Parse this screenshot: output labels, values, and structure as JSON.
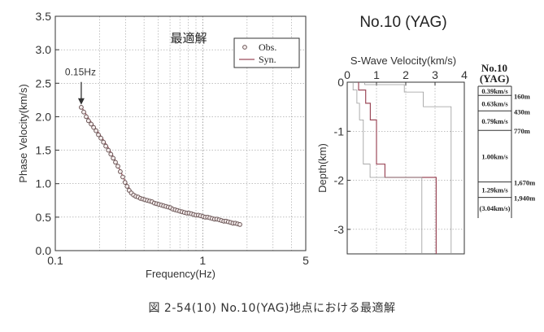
{
  "station_title": "No.10 (YAG)",
  "caption": "図 2-54(10)  No.10(YAG)地点における最適解",
  "chart_data": [
    {
      "type": "scatter",
      "title": "最適解",
      "xlabel": "Frequency(Hz)",
      "ylabel": "Phase Velocity(km/s)",
      "xscale": "log",
      "xlim": [
        0.1,
        5
      ],
      "ylim": [
        0,
        3.5
      ],
      "x_tick_labels": [
        "0.1",
        "1",
        "5"
      ],
      "y_tick_labels": [
        "0.0",
        "0.5",
        "1.0",
        "1.5",
        "2.0",
        "2.5",
        "3.0",
        "3.5"
      ],
      "grid": true,
      "legend_position": "top-right",
      "annotation": {
        "text": "0.15Hz",
        "x": 0.15,
        "y": 2.13
      },
      "series": [
        {
          "name": "Obs.",
          "marker": "open-circle",
          "color": "#7a6262",
          "x": [
            0.15,
            0.156,
            0.162,
            0.168,
            0.175,
            0.182,
            0.189,
            0.196,
            0.204,
            0.212,
            0.22,
            0.229,
            0.238,
            0.247,
            0.256,
            0.266,
            0.276,
            0.287,
            0.297,
            0.307,
            0.317,
            0.328,
            0.34,
            0.352,
            0.365,
            0.378,
            0.392,
            0.406,
            0.421,
            0.437,
            0.453,
            0.47,
            0.487,
            0.505,
            0.524,
            0.543,
            0.563,
            0.584,
            0.605,
            0.627,
            0.65,
            0.674,
            0.699,
            0.725,
            0.752,
            0.78,
            0.808,
            0.838,
            0.869,
            0.901,
            0.934,
            0.968,
            1.004,
            1.041,
            1.079,
            1.119,
            1.16,
            1.202,
            1.246,
            1.292,
            1.34,
            1.389,
            1.44,
            1.493,
            1.548,
            1.605,
            1.664,
            1.725,
            1.788
          ],
          "y": [
            2.14,
            2.07,
            2.0,
            1.94,
            1.89,
            1.84,
            1.79,
            1.73,
            1.68,
            1.62,
            1.56,
            1.5,
            1.44,
            1.38,
            1.32,
            1.26,
            1.18,
            1.1,
            1.02,
            0.96,
            0.9,
            0.86,
            0.83,
            0.81,
            0.8,
            0.78,
            0.77,
            0.76,
            0.75,
            0.74,
            0.73,
            0.71,
            0.7,
            0.69,
            0.68,
            0.67,
            0.66,
            0.65,
            0.64,
            0.62,
            0.61,
            0.6,
            0.59,
            0.58,
            0.57,
            0.56,
            0.56,
            0.55,
            0.54,
            0.53,
            0.53,
            0.52,
            0.51,
            0.5,
            0.5,
            0.49,
            0.48,
            0.47,
            0.47,
            0.46,
            0.45,
            0.44,
            0.44,
            0.43,
            0.42,
            0.41,
            0.41,
            0.4,
            0.39
          ]
        },
        {
          "name": "Syn.",
          "marker": "line",
          "color": "#9c4a5a",
          "x": [
            0.15,
            0.17,
            0.19,
            0.21,
            0.23,
            0.25,
            0.27,
            0.29,
            0.31,
            0.33,
            0.35,
            0.38,
            0.41,
            0.45,
            0.5,
            0.55,
            0.6,
            0.66,
            0.72,
            0.8,
            0.88,
            0.97,
            1.06,
            1.17,
            1.29,
            1.42,
            1.56,
            1.7,
            1.788
          ],
          "y": [
            2.15,
            1.96,
            1.81,
            1.67,
            1.53,
            1.39,
            1.24,
            1.09,
            0.97,
            0.88,
            0.83,
            0.79,
            0.76,
            0.73,
            0.7,
            0.67,
            0.64,
            0.61,
            0.59,
            0.56,
            0.54,
            0.52,
            0.5,
            0.48,
            0.46,
            0.44,
            0.42,
            0.4,
            0.39
          ]
        }
      ]
    },
    {
      "type": "line",
      "title": "S-Wave Velocity(km/s)",
      "xlabel": "S-Wave Velocity(km/s)",
      "ylabel": "Depth(km)",
      "xlim": [
        0,
        4
      ],
      "ylim": [
        -3.5,
        0
      ],
      "x_tick_labels": [
        "0",
        "1",
        "2",
        "3",
        "4"
      ],
      "y_tick_labels": [
        "0",
        "-1",
        "-2",
        "-3"
      ],
      "grid": true,
      "series": [
        {
          "name": "",
          "color": "#9c4a5a",
          "velocity": [
            0.39,
            0.39,
            0.63,
            0.63,
            0.79,
            0.79,
            1.0,
            1.0,
            1.29,
            1.29,
            3.04,
            3.04
          ],
          "depth": [
            0,
            -0.16,
            -0.16,
            -0.43,
            -0.43,
            -0.77,
            -0.77,
            -1.67,
            -1.67,
            -1.94,
            -1.94,
            -3.5
          ]
        },
        {
          "name": "",
          "color": "#999999",
          "velocity": [
            0.2,
            0.2,
            0.33,
            0.33,
            0.42,
            0.42,
            0.55,
            0.55,
            0.78,
            0.78,
            2.55,
            2.55
          ],
          "depth": [
            0,
            -0.16,
            -0.16,
            -0.43,
            -0.43,
            -0.77,
            -0.77,
            -1.67,
            -1.67,
            -1.94,
            -1.94,
            -3.5
          ]
        },
        {
          "name": "",
          "color": "#999999",
          "velocity": [
            0.6,
            0.6,
            1.95,
            1.95,
            2.6,
            2.6,
            3.55,
            3.55
          ],
          "depth": [
            0,
            -0.05,
            -0.05,
            -0.2,
            -0.2,
            -0.5,
            -0.5,
            -3.5
          ]
        }
      ]
    }
  ],
  "model_column": {
    "title": "No.10",
    "subtitle": "(YAG)",
    "layers": [
      {
        "velocity": "0.39km/s",
        "depth_bottom": 0.16,
        "depth_label": "160m"
      },
      {
        "velocity": "0.63km/s",
        "depth_bottom": 0.43,
        "depth_label": "430m"
      },
      {
        "velocity": "0.79km/s",
        "depth_bottom": 0.77,
        "depth_label": "770m"
      },
      {
        "velocity": "1.00km/s",
        "depth_bottom": 1.67,
        "depth_label": "1,670m"
      },
      {
        "velocity": "1.29km/s",
        "depth_bottom": 1.94,
        "depth_label": "1,940m"
      },
      {
        "velocity": "(3.04km/s)",
        "depth_bottom": 3.5,
        "depth_label": ""
      }
    ]
  }
}
